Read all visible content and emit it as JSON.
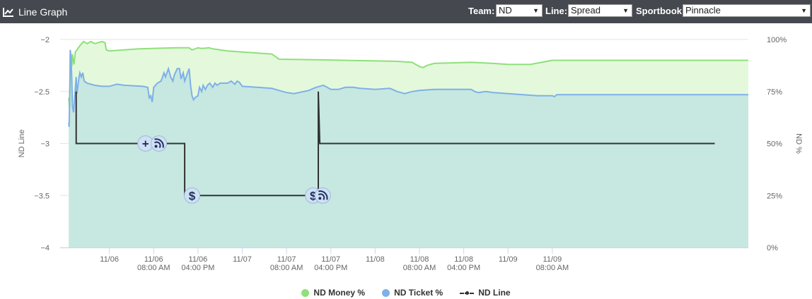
{
  "header": {
    "title": "Line Graph",
    "icon": "line-chart-icon",
    "team_label": "Team:",
    "team_value": "ND",
    "line_label": "Line:",
    "line_value": "Spread",
    "sportsbook_label": "Sportbook:",
    "sportsbook_value": "Pinnacle"
  },
  "chart_data": {
    "type": "area",
    "left_axis": {
      "label": "ND Line",
      "range": [
        -4,
        -2
      ],
      "ticks": [
        "-2",
        "-2.5",
        "-3",
        "-3.5",
        "-4"
      ]
    },
    "right_axis": {
      "label": "ND %",
      "range": [
        0,
        100
      ],
      "ticks": [
        "100%",
        "75%",
        "50%",
        "25%",
        "0%"
      ]
    },
    "x_range": [
      0,
      88
    ],
    "x_ticks": [
      {
        "t": 6,
        "lines": [
          "11/06",
          ""
        ]
      },
      {
        "t": 12,
        "lines": [
          "11/06",
          "08:00 AM"
        ]
      },
      {
        "t": 18,
        "lines": [
          "11/06",
          "04:00 PM"
        ]
      },
      {
        "t": 24,
        "lines": [
          "11/07",
          ""
        ]
      },
      {
        "t": 30,
        "lines": [
          "11/07",
          "08:00 AM"
        ]
      },
      {
        "t": 36,
        "lines": [
          "11/07",
          "04:00 PM"
        ]
      },
      {
        "t": 42,
        "lines": [
          "11/08",
          ""
        ]
      },
      {
        "t": 48,
        "lines": [
          "11/08",
          "08:00 AM"
        ]
      },
      {
        "t": 54,
        "lines": [
          "11/08",
          "04:00 PM"
        ]
      },
      {
        "t": 60,
        "lines": [
          "11/09",
          ""
        ]
      },
      {
        "t": 66,
        "lines": [
          "11/09",
          "08:00 AM"
        ]
      }
    ],
    "grid": true,
    "legend_position": "bottom",
    "series": [
      {
        "name": "ND Money %",
        "axis": "right",
        "color": "#8ee07a",
        "fill": "#e4f9dc",
        "points": [
          [
            0.5,
            72
          ],
          [
            0.6,
            67
          ],
          [
            0.7,
            82
          ],
          [
            0.8,
            90
          ],
          [
            0.9,
            87
          ],
          [
            1.0,
            93
          ],
          [
            1.2,
            88
          ],
          [
            1.4,
            94
          ],
          [
            2.0,
            97
          ],
          [
            2.5,
            99
          ],
          [
            3.0,
            98
          ],
          [
            3.5,
            99
          ],
          [
            4.0,
            98
          ],
          [
            5.0,
            99
          ],
          [
            5.4,
            98.5
          ],
          [
            5.6,
            95
          ],
          [
            6.0,
            94.5
          ],
          [
            10,
            95.5
          ],
          [
            15,
            96
          ],
          [
            16.8,
            96
          ],
          [
            17.2,
            95
          ],
          [
            18,
            96
          ],
          [
            18.5,
            95.7
          ],
          [
            19.5,
            96
          ],
          [
            20,
            95.5
          ],
          [
            22,
            94.5
          ],
          [
            24,
            94
          ],
          [
            28,
            93
          ],
          [
            29,
            90.5
          ],
          [
            35,
            90.2
          ],
          [
            45,
            89.5
          ],
          [
            47,
            89
          ],
          [
            47.5,
            88
          ],
          [
            48,
            87
          ],
          [
            48.5,
            86.5
          ],
          [
            49,
            87.5
          ],
          [
            50,
            88.5
          ],
          [
            55,
            89
          ],
          [
            58,
            88.5
          ],
          [
            60,
            88
          ],
          [
            63,
            88
          ],
          [
            66,
            90
          ],
          [
            70,
            90
          ]
        ]
      },
      {
        "name": "ND Ticket %",
        "axis": "right",
        "color": "#7fb0e8",
        "fill": "#c6e8e0",
        "points": [
          [
            0.5,
            60
          ],
          [
            0.55,
            58
          ],
          [
            0.6,
            68
          ],
          [
            0.65,
            80
          ],
          [
            0.7,
            95
          ],
          [
            0.8,
            92
          ],
          [
            0.9,
            82
          ],
          [
            1.0,
            68
          ],
          [
            1.15,
            65
          ],
          [
            1.3,
            72
          ],
          [
            1.5,
            82
          ],
          [
            1.6,
            74
          ],
          [
            1.9,
            82
          ],
          [
            2.0,
            84
          ],
          [
            2.2,
            82
          ],
          [
            2.4,
            84
          ],
          [
            2.6,
            80
          ],
          [
            3.0,
            79
          ],
          [
            4.0,
            78
          ],
          [
            5.0,
            77.5
          ],
          [
            6.0,
            77.5
          ],
          [
            7.0,
            78.5
          ],
          [
            8.0,
            78
          ],
          [
            10.5,
            77.5
          ],
          [
            11.2,
            77
          ],
          [
            11.4,
            72
          ],
          [
            11.6,
            73
          ],
          [
            11.8,
            70
          ],
          [
            12,
            77
          ],
          [
            12.5,
            79
          ],
          [
            13,
            80
          ],
          [
            13.4,
            84
          ],
          [
            13.6,
            82
          ],
          [
            14,
            86
          ],
          [
            14.3,
            82
          ],
          [
            14.6,
            80
          ],
          [
            14.8,
            83
          ],
          [
            15.2,
            86
          ],
          [
            15.5,
            86
          ],
          [
            15.7,
            81
          ],
          [
            16,
            84
          ],
          [
            16.2,
            80
          ],
          [
            16.5,
            83
          ],
          [
            16.8,
            86
          ],
          [
            17.0,
            78
          ],
          [
            17.2,
            73
          ],
          [
            17.4,
            71
          ],
          [
            17.6,
            72
          ],
          [
            18,
            73
          ],
          [
            18.2,
            77
          ],
          [
            18.5,
            75
          ],
          [
            18.7,
            78
          ],
          [
            19,
            76
          ],
          [
            19.3,
            78
          ],
          [
            19.6,
            79
          ],
          [
            20,
            77
          ],
          [
            20.3,
            79
          ],
          [
            20.6,
            78
          ],
          [
            21,
            79
          ],
          [
            22,
            79
          ],
          [
            22.5,
            80
          ],
          [
            23,
            78.5
          ],
          [
            23.3,
            80
          ],
          [
            23.6,
            79.5
          ],
          [
            24,
            77.5
          ],
          [
            26,
            77
          ],
          [
            28,
            76.5
          ],
          [
            29,
            75.5
          ],
          [
            30,
            74.5
          ],
          [
            31,
            74
          ],
          [
            33,
            75.5
          ],
          [
            34,
            77
          ],
          [
            35,
            78
          ],
          [
            36,
            76
          ],
          [
            37,
            76
          ],
          [
            38,
            77
          ],
          [
            39,
            77
          ],
          [
            40,
            76.5
          ],
          [
            42,
            76
          ],
          [
            44,
            76.5
          ],
          [
            45,
            75
          ],
          [
            46,
            74
          ],
          [
            47,
            75
          ],
          [
            48,
            75.5
          ],
          [
            50,
            76
          ],
          [
            52,
            76
          ],
          [
            54,
            76
          ],
          [
            55,
            76
          ],
          [
            55.5,
            75
          ],
          [
            56,
            74.5
          ],
          [
            57,
            75
          ],
          [
            58,
            74.5
          ],
          [
            60,
            74
          ],
          [
            62,
            73.5
          ],
          [
            64,
            73
          ],
          [
            66,
            73
          ],
          [
            66.3,
            72.5
          ],
          [
            66.6,
            73.5
          ],
          [
            67,
            73.5
          ],
          [
            70,
            73.5
          ]
        ]
      },
      {
        "name": "ND Line",
        "axis": "left",
        "color": "#333333",
        "points": [
          [
            1.5,
            -2.5
          ],
          [
            1.5,
            -3
          ],
          [
            16.2,
            -3
          ],
          [
            16.2,
            -3.5
          ],
          [
            34.3,
            -3.5
          ],
          [
            34.3,
            -2.5
          ],
          [
            34.5,
            -3
          ],
          [
            88,
            -3
          ]
        ]
      }
    ],
    "markers": [
      {
        "t": 10.9,
        "value": -3,
        "type": "plus",
        "glyph": "+"
      },
      {
        "t": 12.7,
        "value": -3,
        "type": "rss",
        "glyph": ""
      },
      {
        "t": 17.2,
        "value": -3.5,
        "type": "dollar",
        "glyph": "$"
      },
      {
        "t": 33.6,
        "value": -3.5,
        "type": "dollar",
        "glyph": "$"
      },
      {
        "t": 34.9,
        "value": -3.5,
        "type": "rss",
        "glyph": ""
      }
    ]
  }
}
